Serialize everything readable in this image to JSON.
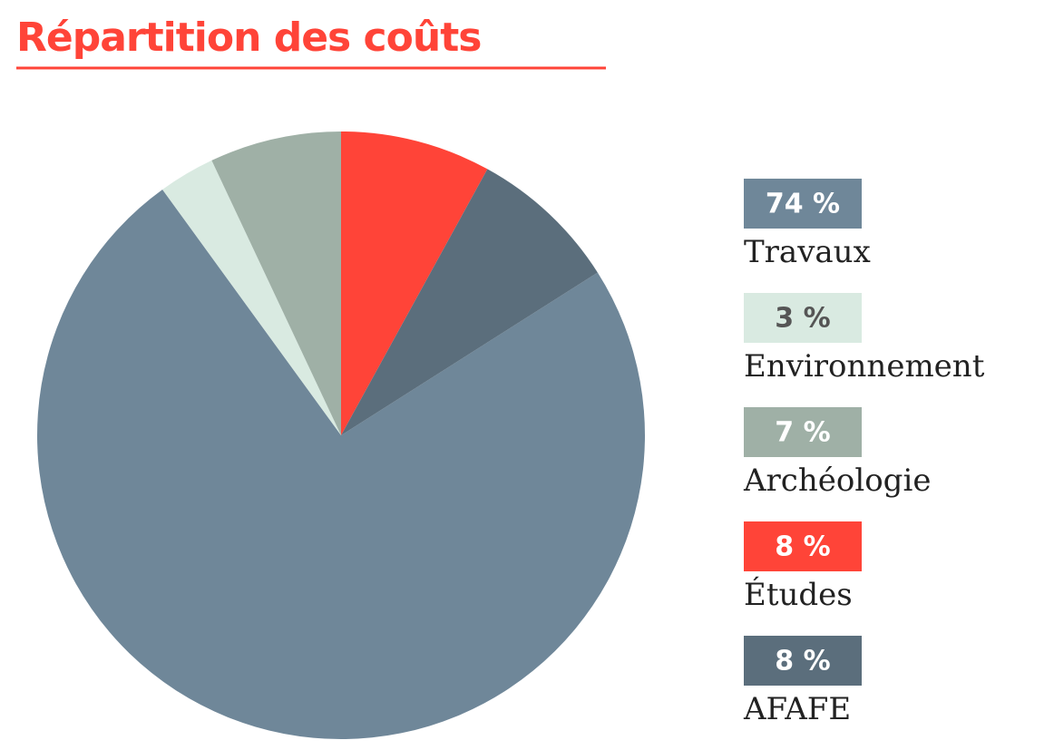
{
  "chart_data": {
    "type": "pie",
    "title": "Répartition des coûts",
    "categories": [
      "Travaux",
      "Environnement",
      "Archéologie",
      "Études",
      "AFAFE"
    ],
    "values": [
      74,
      3,
      7,
      8,
      8
    ],
    "value_labels": [
      "74 %",
      "3 %",
      "7 %",
      "8 %",
      "8 %"
    ],
    "colors": [
      "#6f8799",
      "#d9eae1",
      "#9fb0a6",
      "#ff4438",
      "#5b6e7c"
    ]
  }
}
